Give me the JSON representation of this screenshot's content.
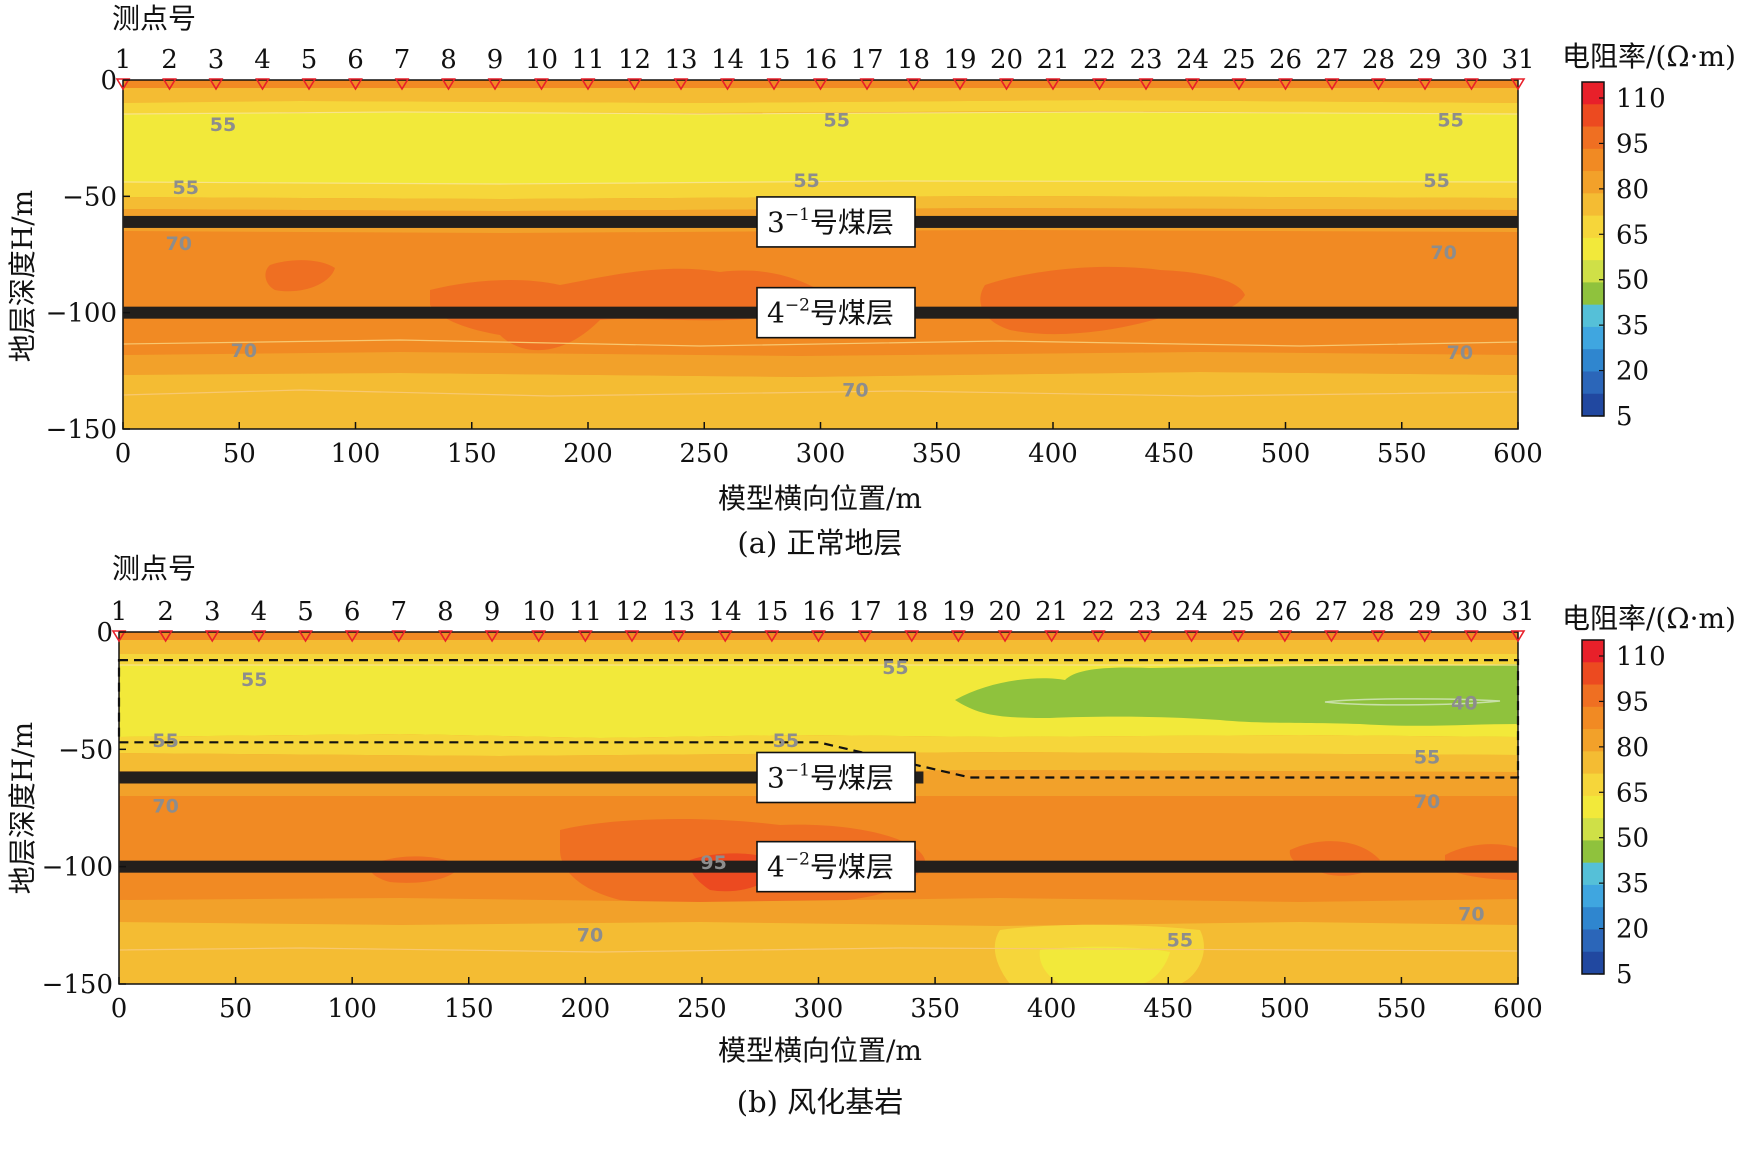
{
  "colorbar": {
    "title": "电阻率/(Ω·m)",
    "ticks": [
      "110",
      "95",
      "80",
      "65",
      "50",
      "35",
      "20",
      "5"
    ],
    "colors": [
      "#e8202a",
      "#ec4a20",
      "#ef6f22",
      "#f18a23",
      "#f2a12a",
      "#f4bc33",
      "#f6d63a",
      "#f2e93a",
      "#cfe047",
      "#8fc23d",
      "#55c0d8",
      "#3fa6e0",
      "#2f86cf",
      "#2b66b9",
      "#2148a0"
    ]
  },
  "chart_data": [
    {
      "type": "heatmap",
      "caption": "(a) 正常地层",
      "top_label": "测点号",
      "xlabel": "模型横向位置/m",
      "ylabel": "地层深度H/m",
      "xlim": [
        0,
        600
      ],
      "ylim": [
        -150,
        0
      ],
      "x_ticks": [
        "0",
        "50",
        "100",
        "150",
        "200",
        "250",
        "300",
        "350",
        "400",
        "450",
        "500",
        "550",
        "600"
      ],
      "y_ticks": [
        "0",
        "−50",
        "−100",
        "−150"
      ],
      "stations": [
        "1",
        "2",
        "3",
        "4",
        "5",
        "6",
        "7",
        "8",
        "9",
        "10",
        "11",
        "12",
        "13",
        "14",
        "15",
        "16",
        "17",
        "18",
        "19",
        "20",
        "21",
        "22",
        "23",
        "24",
        "25",
        "26",
        "27",
        "28",
        "29",
        "30",
        "31"
      ],
      "station_spacing_m": 20,
      "coal_seams": [
        {
          "name_base": "3",
          "name_sup": "−1",
          "name_suffix": "号煤层",
          "depth": -61,
          "x_start": 0,
          "x_end": 600
        },
        {
          "name_base": "4",
          "name_sup": "−2",
          "name_suffix": "号煤层",
          "depth": -100,
          "x_start": 0,
          "x_end": 600
        }
      ],
      "contour_labels": [
        {
          "text": "55",
          "x": 43,
          "y": -19
        },
        {
          "text": "55",
          "x": 307,
          "y": -17
        },
        {
          "text": "55",
          "x": 571,
          "y": -17
        },
        {
          "text": "55",
          "x": 27,
          "y": -46
        },
        {
          "text": "55",
          "x": 294,
          "y": -43
        },
        {
          "text": "55",
          "x": 565,
          "y": -43
        },
        {
          "text": "70",
          "x": 24,
          "y": -70
        },
        {
          "text": "70",
          "x": 568,
          "y": -74
        },
        {
          "text": "70",
          "x": 52,
          "y": -116
        },
        {
          "text": "70",
          "x": 575,
          "y": -117
        },
        {
          "text": "70",
          "x": 315,
          "y": -133
        }
      ]
    },
    {
      "type": "heatmap",
      "caption": "(b) 风化基岩",
      "top_label": "测点号",
      "xlabel": "模型横向位置/m",
      "ylabel": "地层深度H/m",
      "xlim": [
        0,
        600
      ],
      "ylim": [
        -150,
        0
      ],
      "x_ticks": [
        "0",
        "50",
        "100",
        "150",
        "200",
        "250",
        "300",
        "350",
        "400",
        "450",
        "500",
        "550",
        "600"
      ],
      "y_ticks": [
        "0",
        "−50",
        "−100",
        "−150"
      ],
      "stations": [
        "1",
        "2",
        "3",
        "4",
        "5",
        "6",
        "7",
        "8",
        "9",
        "10",
        "11",
        "12",
        "13",
        "14",
        "15",
        "16",
        "17",
        "18",
        "19",
        "20",
        "21",
        "22",
        "23",
        "24",
        "25",
        "26",
        "27",
        "28",
        "29",
        "30",
        "31"
      ],
      "station_spacing_m": 20,
      "coal_seams": [
        {
          "name_base": "3",
          "name_sup": "−1",
          "name_suffix": "号煤层",
          "depth": -62,
          "x_start": 0,
          "x_end": 345
        },
        {
          "name_base": "4",
          "name_sup": "−2",
          "name_suffix": "号煤层",
          "depth": -100,
          "x_start": 0,
          "x_end": 600
        }
      ],
      "weathered_zone_outline": [
        [
          0,
          -12
        ],
        [
          600,
          -12
        ],
        [
          600,
          -62
        ],
        [
          365,
          -62
        ],
        [
          300,
          -47
        ],
        [
          0,
          -47
        ]
      ],
      "contour_labels": [
        {
          "text": "55",
          "x": 58,
          "y": -20
        },
        {
          "text": "55",
          "x": 333,
          "y": -15
        },
        {
          "text": "40",
          "x": 577,
          "y": -30
        },
        {
          "text": "55",
          "x": 20,
          "y": -46
        },
        {
          "text": "55",
          "x": 286,
          "y": -46
        },
        {
          "text": "55",
          "x": 561,
          "y": -53
        },
        {
          "text": "70",
          "x": 20,
          "y": -74
        },
        {
          "text": "70",
          "x": 561,
          "y": -72
        },
        {
          "text": "95",
          "x": 255,
          "y": -98
        },
        {
          "text": "70",
          "x": 580,
          "y": -120
        },
        {
          "text": "70",
          "x": 202,
          "y": -129
        },
        {
          "text": "55",
          "x": 455,
          "y": -131
        }
      ]
    }
  ]
}
